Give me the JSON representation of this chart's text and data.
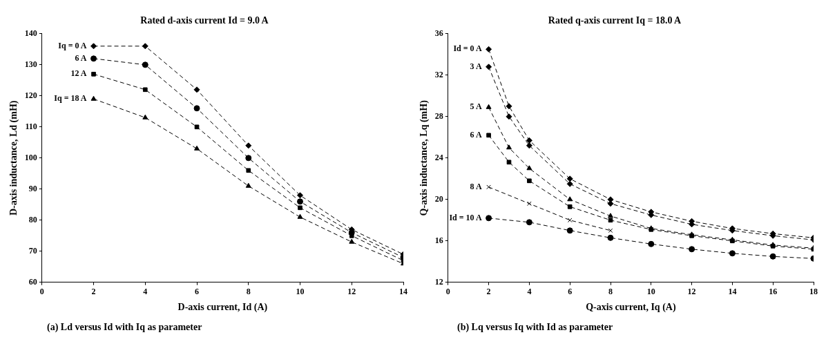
{
  "chart_data": [
    {
      "type": "line",
      "title": "Rated d-axis current Id = 9.0 A",
      "xlabel": "D-axis current, Id (A)",
      "ylabel": "D-axis inductance, Ld (mH)",
      "annotations": [
        "(a)  Ld versus Id with Iq as parameter"
      ],
      "x": [
        2,
        4,
        6,
        8,
        10,
        12,
        14
      ],
      "xlim": [
        0,
        14
      ],
      "xticks": [
        0,
        2,
        4,
        6,
        8,
        10,
        12,
        14
      ],
      "ylim": [
        60,
        140
      ],
      "yticks": [
        60,
        70,
        80,
        90,
        100,
        110,
        120,
        130,
        140
      ],
      "grid": false,
      "legend": false,
      "line_style": "dashed",
      "series": [
        {
          "name": "Iq = 0 A",
          "color": "#000000",
          "marker": "diamond",
          "values": [
            136,
            136,
            122,
            104,
            88,
            77,
            69
          ]
        },
        {
          "name": "6 A",
          "color": "#000000",
          "marker": "circle",
          "values": [
            132,
            130,
            116,
            100,
            86,
            76,
            68
          ]
        },
        {
          "name": "12 A",
          "color": "#000000",
          "marker": "square",
          "values": [
            127,
            122,
            110,
            96,
            84,
            75,
            67
          ]
        },
        {
          "name": "Iq = 18 A",
          "color": "#000000",
          "marker": "triangle",
          "values": [
            119,
            113,
            103,
            91,
            81,
            73,
            66
          ]
        }
      ]
    },
    {
      "type": "line",
      "title": "Rated q-axis current Iq = 18.0 A",
      "xlabel": "Q-axis current, Iq (A)",
      "ylabel": "Q-axis inductance, Lq (mH)",
      "annotations": [
        "(b)  Lq versus Iq with Id as parameter"
      ],
      "x": [
        2,
        3,
        4,
        6,
        8,
        10,
        12,
        14,
        16,
        18
      ],
      "xlim": [
        0,
        18
      ],
      "xticks": [
        0,
        2,
        4,
        6,
        8,
        10,
        12,
        14,
        16,
        18
      ],
      "ylim": [
        12,
        36
      ],
      "yticks": [
        12,
        16,
        20,
        24,
        28,
        32,
        36
      ],
      "grid": false,
      "legend": false,
      "line_style": "dashed",
      "series": [
        {
          "name": "Id = 0 A",
          "color": "#000000",
          "marker": "diamond",
          "values": [
            34.5,
            29,
            25.7,
            22,
            20,
            18.8,
            17.9,
            17.2,
            16.7,
            16.3
          ]
        },
        {
          "name": "3 A",
          "color": "#000000",
          "marker": "diamond",
          "values": [
            32.8,
            28,
            25.2,
            21.5,
            19.6,
            18.5,
            17.6,
            17,
            16.5,
            16.1
          ]
        },
        {
          "name": "5 A",
          "color": "#000000",
          "marker": "triangle",
          "values": [
            28.9,
            25,
            23,
            20,
            18.4,
            17.2,
            16.6,
            16.1,
            15.6,
            15.3
          ]
        },
        {
          "name": "6 A",
          "color": "#000000",
          "marker": "square",
          "values": [
            26.2,
            23.6,
            21.8,
            19.3,
            18,
            17.1,
            16.5,
            16,
            15.5,
            15.2
          ]
        },
        {
          "name": "8 A",
          "color": "#000000",
          "marker": "cross",
          "values": [
            21.2,
            null,
            19.6,
            18,
            17,
            null,
            null,
            null,
            null,
            null
          ]
        },
        {
          "name": "Id = 10 A",
          "color": "#000000",
          "marker": "circle",
          "values": [
            18.2,
            null,
            17.8,
            17,
            16.3,
            15.7,
            15.2,
            14.8,
            14.5,
            14.3
          ]
        }
      ]
    }
  ]
}
